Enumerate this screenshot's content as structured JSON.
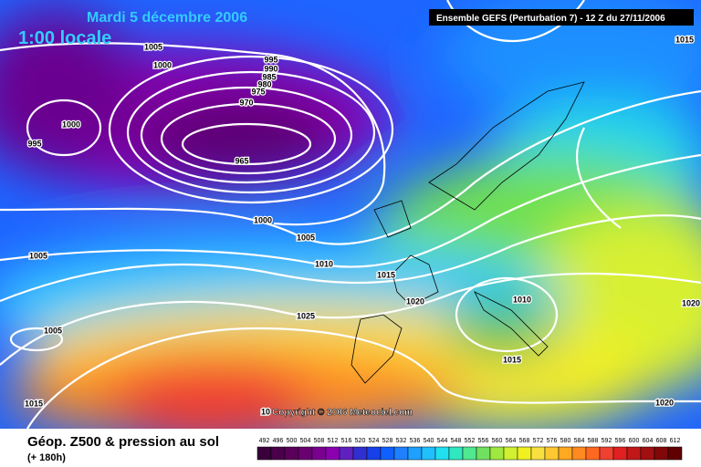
{
  "header": {
    "title": "Mardi 5 décembre 2006",
    "time": "1:00 locale",
    "model": "Ensemble GEFS (Perturbation 7)  - 12 Z du 27/11/2006"
  },
  "isobar_labels": [
    "1005",
    "1000",
    "995",
    "990",
    "985",
    "980",
    "975",
    "970",
    "965",
    "1000",
    "995",
    "1000",
    "1005",
    "1010",
    "1015",
    "1020",
    "1025",
    "1005",
    "1005",
    "1015",
    "1015",
    "1020",
    "1010",
    "1015",
    "1020",
    "10"
  ],
  "copyright": "Copyright © 2006 Meteociel.com",
  "footer": {
    "title": "Géop. Z500 & pression au sol",
    "lead": "(+ 180h)"
  },
  "scale": {
    "labels": [
      "492",
      "496",
      "500",
      "504",
      "508",
      "512",
      "516",
      "520",
      "524",
      "528",
      "532",
      "536",
      "540",
      "544",
      "548",
      "552",
      "556",
      "560",
      "564",
      "568",
      "572",
      "576",
      "580",
      "584",
      "588",
      "592",
      "596",
      "600",
      "604",
      "608",
      "612"
    ]
  }
}
